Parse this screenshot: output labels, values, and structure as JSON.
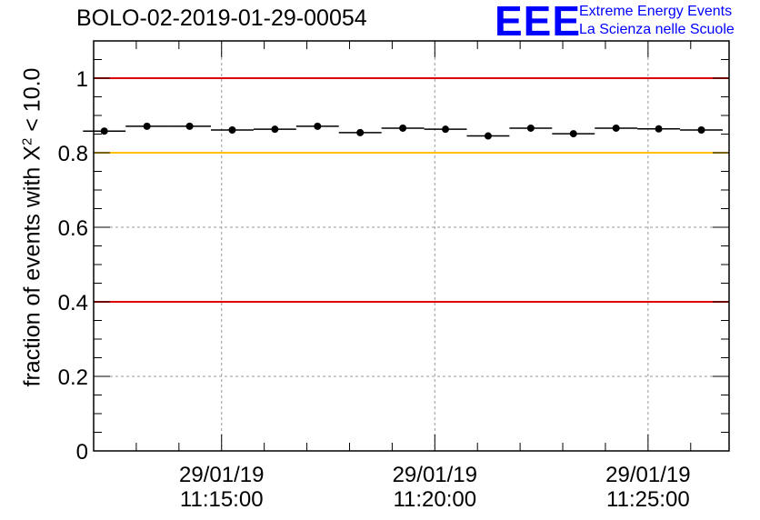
{
  "chart_data": {
    "type": "scatter",
    "title": "BOLO-02-2019-01-29-00054",
    "xlabel": "",
    "ylabel": {
      "prefix": "fraction of events with ",
      "symbol": "X",
      "superscript": "2",
      "suffix": " < 10.0"
    },
    "ylim": [
      0,
      1.1
    ],
    "yticks": [
      0,
      0.2,
      0.4,
      0.6,
      0.8,
      1
    ],
    "ytick_labels": [
      "0",
      "0.2",
      "0.4",
      "0.6",
      "0.8",
      "1"
    ],
    "xlim_minutes": [
      -3.0,
      11.9
    ],
    "xticks_minutes": [
      0,
      5,
      10
    ],
    "xtick_labels": [
      {
        "date": "29/01/19",
        "time": "11:15:00"
      },
      {
        "date": "29/01/19",
        "time": "11:20:00"
      },
      {
        "date": "29/01/19",
        "time": "11:25:00"
      }
    ],
    "grid": true,
    "bin_width_minutes": 1.0,
    "series": [
      {
        "name": "fraction",
        "x_minutes": [
          -2.75,
          -1.75,
          -0.75,
          0.25,
          1.25,
          2.25,
          3.25,
          4.25,
          5.25,
          6.25,
          7.25,
          8.25,
          9.25,
          10.25,
          11.25
        ],
        "values": [
          0.858,
          0.871,
          0.871,
          0.861,
          0.863,
          0.871,
          0.854,
          0.866,
          0.863,
          0.845,
          0.866,
          0.851,
          0.866,
          0.864,
          0.861
        ]
      }
    ],
    "reference_lines": [
      {
        "y": 1.0,
        "color": "#e00000"
      },
      {
        "y": 0.8,
        "color": "#ffc000"
      },
      {
        "y": 0.4,
        "color": "#e00000"
      }
    ]
  },
  "logo": {
    "mark": "EEE",
    "line1": "Extreme Energy Events",
    "line2": "La Scienza nelle Scuole",
    "color": "#0000ff"
  }
}
